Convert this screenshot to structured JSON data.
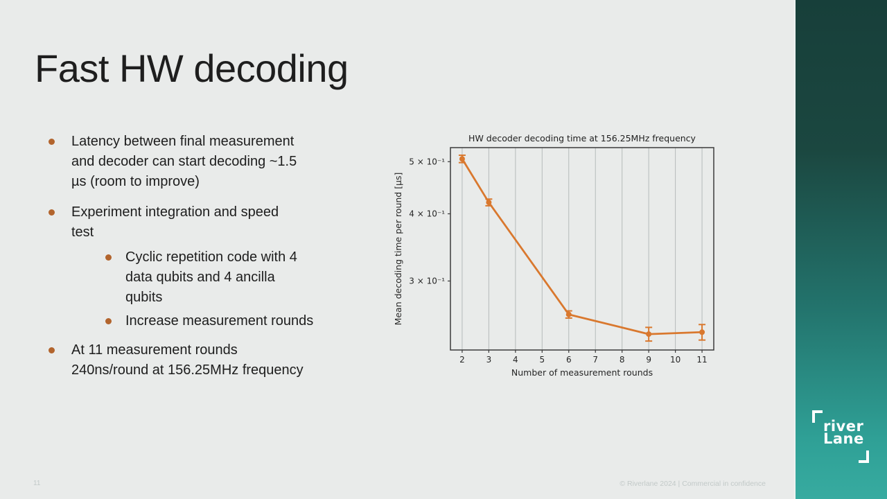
{
  "slide": {
    "title": "Fast HW decoding",
    "page_number": "11",
    "footer": "© Riverlane 2024 | Commercial in confidence"
  },
  "bullets": [
    {
      "level": 1,
      "lines": [
        "Latency between final measurement",
        "and decoder can start decoding ~1.5",
        "µs (room to improve)"
      ]
    },
    {
      "level": 1,
      "lines": [
        "Experiment integration and speed",
        "test"
      ]
    },
    {
      "level": 2,
      "lines": [
        "Cyclic repetition code with 4",
        "data qubits and 4 ancilla",
        "qubits"
      ]
    },
    {
      "level": 2,
      "lines": [
        "Increase measurement rounds"
      ]
    },
    {
      "level": 1,
      "lines": [
        "At 11 measurement rounds",
        "240ns/round at 156.25MHz frequency"
      ]
    }
  ],
  "logo": {
    "line1": "river",
    "line2": "Lane"
  },
  "colors": {
    "background": "#e9ebea",
    "bullet_dot": "#b2642d",
    "line": "#d9782e",
    "grid": "#b5bbba",
    "frame": "#3a3a3a",
    "chart_text": "#262626",
    "strip_top": "#173f3a",
    "strip_bottom": "#37aba0",
    "footer_text": "#c2c9c8"
  },
  "chart_data": {
    "type": "line",
    "title": "HW decoder decoding time at 156.25MHz frequency",
    "xlabel": "Number of measurement rounds",
    "ylabel": "Mean decoding time per round [µs]",
    "x": [
      2,
      3,
      6,
      9,
      11
    ],
    "y": [
      0.506,
      0.42,
      0.26,
      0.239,
      0.241
    ],
    "yerr": [
      0.008,
      0.006,
      0.004,
      0.007,
      0.008
    ],
    "xticks": [
      2,
      3,
      4,
      5,
      6,
      7,
      8,
      9,
      10,
      11
    ],
    "yticks": [
      {
        "value": 0.5,
        "label": "5 × 10⁻¹"
      },
      {
        "value": 0.4,
        "label": "4 × 10⁻¹"
      },
      {
        "value": 0.3,
        "label": "3 × 10⁻¹"
      }
    ],
    "yscale": "log",
    "xlim": [
      1.56,
      11.44
    ],
    "ylim": [
      0.2233,
      0.531
    ],
    "grid": "vertical",
    "legend": null
  }
}
